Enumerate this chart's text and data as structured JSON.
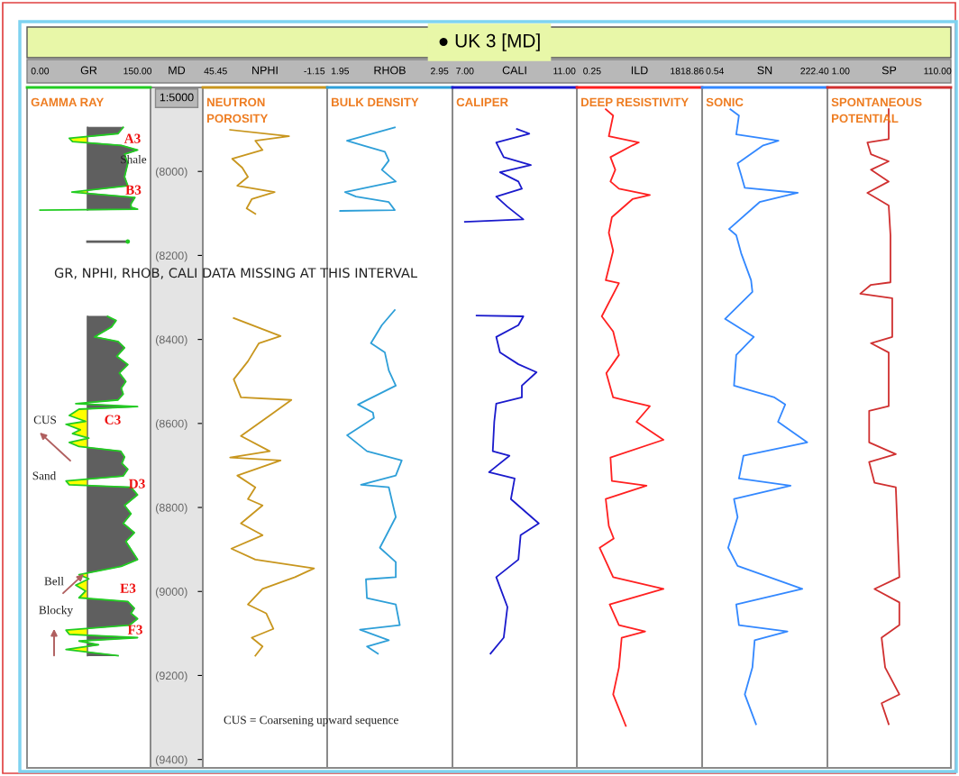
{
  "chart_data": [
    {
      "type": "line",
      "orientation": "horizontal",
      "title": "GAMMA RAY",
      "xlabel": "GR",
      "xlim": [
        -20,
        170
      ],
      "xticks": [
        {
          "value": 0,
          "label": "0.00"
        },
        {
          "value": 150,
          "label": "150.00"
        }
      ],
      "ylim": [
        9420,
        7800
      ],
      "tick_labels": "x",
      "ref_lines": [
        {
          "axis": "x",
          "value": 73,
          "color": "#5f5f5f"
        }
      ],
      "annotations": [
        "A3",
        "B3",
        "C3",
        "D3",
        "E3",
        "F3",
        "Shale",
        "CUS",
        "Sand",
        "Bell",
        "Blocky",
        "GR, NPHI, RHOB, CALI DATA MISSING AT THIS INTERVAL"
      ],
      "series": [
        {
          "color": "#22cc22",
          "x": [
            7895,
            7910,
            7921,
            7929,
            7938,
            7949,
            7959,
            7981,
            8013,
            8034,
            8049,
            8062,
            8077,
            8085,
            8090,
            8092,
            8120,
            8167,
            8250,
            8345,
            8355,
            8370,
            8394,
            8405,
            8420,
            8440,
            8460,
            8480,
            8500,
            8516,
            8530,
            8544,
            8553,
            8560,
            8566,
            8581,
            8595,
            8602,
            8615,
            8624,
            8635,
            8645,
            8655,
            8666,
            8680,
            8695,
            8709,
            8725,
            8737,
            8746,
            8752,
            8770,
            8795,
            8815,
            8838,
            8860,
            8881,
            8900,
            8924,
            8940,
            8960,
            8970,
            8985,
            8999,
            9015,
            9024,
            9040,
            9052,
            9065,
            9080,
            9092,
            9102,
            9110,
            9118,
            9127,
            9138,
            9153
          ],
          "values": [
            128,
            120,
            45,
            50,
            125,
            150,
            130,
            135,
            130,
            135,
            49,
            146,
            140,
            140,
            150,
            0,
            null,
            135,
            null,
            104,
            117,
            110,
            84,
            120,
            130,
            118,
            135,
            122,
            132,
            125,
            128,
            120,
            55,
            150,
            60,
            45,
            70,
            40,
            62,
            50,
            75,
            45,
            60,
            124,
            130,
            126,
            135,
            128,
            40,
            45,
            140,
            150,
            130,
            140,
            128,
            145,
            132,
            140,
            150,
            125,
            60,
            75,
            55,
            70,
            60,
            135,
            145,
            140,
            150,
            138,
            40,
            45,
            150,
            60,
            90,
            40,
            120
          ]
        }
      ]
    },
    {
      "type": "line",
      "orientation": "horizontal",
      "title": "NEUTRON\nPOROSITY",
      "xlabel": "NPHI",
      "ylabel": "MD",
      "xlim": [
        51.5,
        -7.2
      ],
      "xticks": [
        {
          "value": 45.45,
          "label": "45.45"
        },
        {
          "value": -1.15,
          "label": "-1.15"
        }
      ],
      "ylim": [
        9420,
        7800
      ],
      "yticks": [
        {
          "value": 8000,
          "label": "(8000)"
        },
        {
          "value": 8200,
          "label": "(8200)"
        },
        {
          "value": 8400,
          "label": "(8400)"
        },
        {
          "value": 8600,
          "label": "(8600)"
        },
        {
          "value": 8800,
          "label": "(8800)"
        },
        {
          "value": 9000,
          "label": "(9000)"
        },
        {
          "value": 9200,
          "label": "(9200)"
        },
        {
          "value": 9400,
          "label": "(9400)"
        }
      ],
      "annotations": [
        "CUS = Coarsening upward sequence",
        "1:5000",
        "● UK 3 [MD]"
      ],
      "series": [
        {
          "color": "#c8961e",
          "x": [
            7901,
            7916,
            7927,
            7949,
            7970,
            7991,
            8013,
            8034,
            8049,
            8066,
            8088,
            8101,
            8200,
            8349,
            8392,
            8409,
            8452,
            8495,
            8538,
            8544,
            8581,
            8630,
            8666,
            8681,
            8688,
            8724,
            8752,
            8780,
            8795,
            8838,
            8866,
            8898,
            8924,
            8945,
            8966,
            8994,
            9031,
            9052,
            9089,
            9110,
            9131,
            9153
          ],
          "values": [
            38.6,
            10.8,
            26.7,
            23.3,
            37.6,
            32.9,
            30.2,
            35.2,
            17.6,
            28.4,
            30.8,
            26.7,
            null,
            36.9,
            14.8,
            25.0,
            30.2,
            36.9,
            33.5,
            9.7,
            19.9,
            33.5,
            19.9,
            38.6,
            14.8,
            35.2,
            26.7,
            30.2,
            23.3,
            33.5,
            23.3,
            38.0,
            26.7,
            -1.0,
            8.0,
            23.3,
            30.2,
            21.6,
            18.2,
            28.4,
            23.3,
            26.7
          ]
        }
      ]
    },
    {
      "type": "line",
      "orientation": "horizontal",
      "title": "BULK DENSITY",
      "xlabel": "RHOB",
      "xlim": [
        1.82,
        3.08
      ],
      "xticks": [
        {
          "value": 1.95,
          "label": "1.95"
        },
        {
          "value": 2.95,
          "label": "2.95"
        }
      ],
      "ylim": [
        9420,
        7800
      ],
      "tick_labels": "x",
      "series": [
        {
          "color": "#2e9fd8",
          "x": [
            7895,
            7927,
            7938,
            7953,
            7974,
            7996,
            8024,
            8049,
            8060,
            8073,
            8092,
            8094,
            8200,
            8330,
            8366,
            8409,
            8431,
            8474,
            8510,
            8555,
            8574,
            8587,
            8628,
            8666,
            8688,
            8724,
            8746,
            8752,
            8823,
            8896,
            8930,
            8966,
            8971,
            9016,
            9031,
            9080,
            9091,
            9116,
            9131,
            9148
          ],
          "values": [
            2.5,
            2.02,
            2.18,
            2.4,
            2.44,
            2.37,
            2.51,
            2.0,
            2.11,
            2.44,
            2.5,
            1.95,
            null,
            2.5,
            2.37,
            2.26,
            2.4,
            2.44,
            2.51,
            2.13,
            2.28,
            2.29,
            2.02,
            2.22,
            2.57,
            2.51,
            2.16,
            2.44,
            2.51,
            2.35,
            2.51,
            2.51,
            2.21,
            2.22,
            2.51,
            2.55,
            2.15,
            2.44,
            2.22,
            2.33
          ]
        }
      ]
    },
    {
      "type": "line",
      "orientation": "horizontal",
      "title": "CALIPER",
      "xlabel": "CALI",
      "xlim": [
        6.5,
        11.5
      ],
      "xticks": [
        {
          "value": 7,
          "label": "7.00"
        },
        {
          "value": 11,
          "label": "11.00"
        }
      ],
      "ylim": [
        9420,
        7800
      ],
      "tick_labels": "x",
      "series": [
        {
          "color": "#1a1acc",
          "x": [
            7899,
            7910,
            7931,
            7966,
            7985,
            8002,
            8024,
            8041,
            8060,
            8084,
            8114,
            8120,
            8200,
            8343,
            8345,
            8366,
            8394,
            8431,
            8459,
            8478,
            8510,
            8538,
            8553,
            8596,
            8666,
            8677,
            8716,
            8731,
            8780,
            8838,
            8866,
            8924,
            8966,
            9037,
            9110,
            9148
          ],
          "values": [
            9.09,
            9.59,
            8.26,
            8.56,
            9.65,
            8.41,
            9.15,
            9.29,
            8.26,
            8.71,
            9.35,
            7.0,
            null,
            7.47,
            9.35,
            9.15,
            8.26,
            8.41,
            9.15,
            9.88,
            9.29,
            9.29,
            8.26,
            8.18,
            8.12,
            8.79,
            7.97,
            9.0,
            8.85,
            9.97,
            9.24,
            9.15,
            8.26,
            8.71,
            8.56,
            8.03
          ]
        }
      ]
    },
    {
      "type": "line",
      "orientation": "horizontal",
      "title": "DEEP RESISTIVITY",
      "xlabel": "ILD",
      "log": "x",
      "xlim": [
        0.06,
        7500
      ],
      "xticks": [
        {
          "value": 0.25,
          "label": "0.25"
        },
        {
          "value": 1818.86,
          "label": "1818.86"
        }
      ],
      "ylim": [
        9420,
        7800
      ],
      "tick_labels": "x",
      "series": [
        {
          "color": "#ff2020",
          "x": [
            7852,
            7867,
            7916,
            7931,
            7938,
            7966,
            7996,
            8024,
            8041,
            8056,
            8066,
            8109,
            8146,
            8189,
            8259,
            8266,
            8345,
            8381,
            8437,
            8480,
            8538,
            8549,
            8559,
            8596,
            8639,
            8681,
            8737,
            8748,
            8780,
            8844,
            8874,
            8896,
            8966,
            8994,
            9031,
            9080,
            9095,
            9110,
            9181,
            9245,
            9320
          ],
          "values": [
            0.9,
            1.8,
            1.2,
            20,
            11,
            1.4,
            2.2,
            1.4,
            3.1,
            56,
            11,
            1.6,
            1.2,
            1.8,
            0.9,
            3.1,
            0.62,
            1.8,
            3.1,
            0.95,
            1.8,
            11,
            56,
            16,
            200,
            1.4,
            1.6,
            41,
            0.9,
            1.2,
            1.9,
            0.51,
            1.8,
            200,
            1.3,
            3.1,
            36,
            4.0,
            3.1,
            1.8,
            5.9
          ]
        }
      ]
    },
    {
      "type": "line",
      "orientation": "horizontal",
      "title": "SONIC",
      "xlabel": "SN",
      "xlim": [
        -28,
        251
      ],
      "xticks": [
        {
          "value": 0.54,
          "label": "0.54"
        },
        {
          "value": 222.4,
          "label": "222.40"
        }
      ],
      "ylim": [
        9420,
        7800
      ],
      "tick_labels": "x",
      "series": [
        {
          "color": "#3388ff",
          "x": [
            7852,
            7867,
            7912,
            7927,
            7938,
            7981,
            8009,
            8039,
            8051,
            8073,
            8137,
            8152,
            8195,
            8259,
            8287,
            8351,
            8394,
            8437,
            8510,
            8538,
            8555,
            8596,
            8645,
            8677,
            8731,
            8748,
            8780,
            8823,
            8896,
            8939,
            8994,
            9031,
            9080,
            9095,
            9116,
            9181,
            9245,
            9316
          ],
          "values": [
            35,
            54,
            48,
            142,
            108,
            51,
            59,
            67,
            185,
            100,
            32,
            48,
            59,
            81,
            84,
            23,
            87,
            48,
            43,
            133,
            157,
            141,
            206,
            64,
            54,
            169,
            43,
            51,
            30,
            51,
            195,
            48,
            54,
            162,
            89,
            84,
            67,
            92
          ]
        }
      ]
    },
    {
      "type": "line",
      "orientation": "horizontal",
      "title": "SPONTANEOUS\nPOTENTIAL",
      "xlabel": "SP",
      "xlim": [
        -14,
        125
      ],
      "xticks": [
        {
          "value": 1,
          "label": "1.00"
        },
        {
          "value": 110,
          "label": "110.00"
        }
      ],
      "ylim": [
        9420,
        7800
      ],
      "tick_labels": "x",
      "series": [
        {
          "color": "#d03030",
          "x": [
            7852,
            7923,
            7931,
            7959,
            7976,
            7996,
            8024,
            8051,
            8081,
            8152,
            8264,
            8270,
            8291,
            8302,
            8394,
            8409,
            8431,
            8559,
            8570,
            8645,
            8673,
            8692,
            8741,
            8752,
            8966,
            8994,
            9026,
            9080,
            9110,
            9181,
            9245,
            9266,
            9316
          ],
          "values": [
            55,
            55,
            31,
            35,
            55,
            35,
            55,
            31,
            55,
            57,
            57,
            35,
            23,
            59,
            59,
            35,
            55,
            55,
            33,
            33,
            63,
            33,
            39,
            63,
            67,
            39,
            67,
            67,
            47,
            51,
            67,
            47,
            55
          ]
        }
      ]
    }
  ]
}
